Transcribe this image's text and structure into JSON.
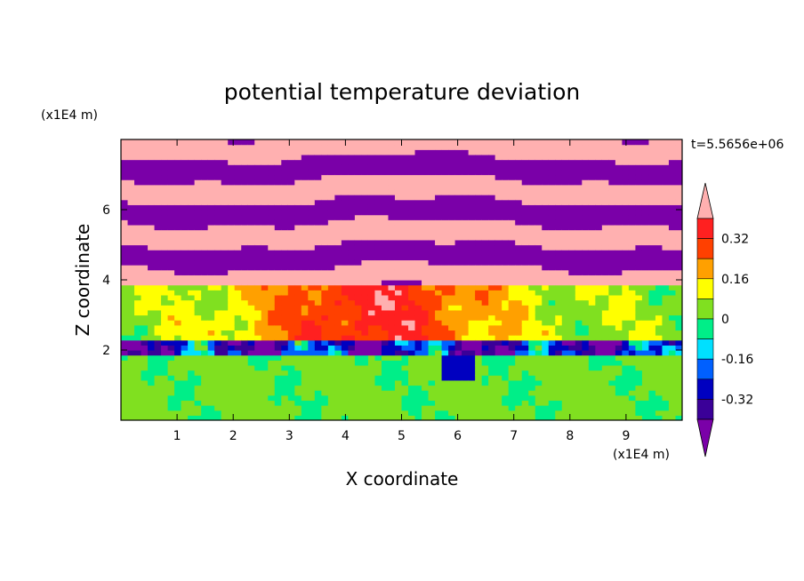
{
  "chart_data": {
    "type": "heatmap",
    "title": "potential temperature deviation",
    "xlabel": "X coordinate",
    "ylabel": "Z coordinate",
    "x_unit": "(x1E4 m)",
    "y_unit": "(x1E4 m)",
    "time_label": "t=5.5656e+06",
    "xlim": [
      0,
      10
    ],
    "ylim": [
      0,
      8
    ],
    "x_ticks": [
      1,
      2,
      3,
      4,
      5,
      6,
      7,
      8,
      9
    ],
    "y_ticks": [
      2,
      4,
      6
    ],
    "colorbar": {
      "levels": [
        -0.4,
        -0.32,
        -0.24,
        -0.16,
        -0.08,
        0,
        0.08,
        0.16,
        0.24,
        0.32,
        0.4
      ],
      "tick_labels": [
        "0.32",
        "0.16",
        "0",
        "-0.16",
        "-0.32"
      ],
      "tick_values": [
        0.32,
        0.16,
        0,
        -0.16,
        -0.32
      ],
      "colors": [
        "#7a00a8",
        "#3a0098",
        "#0000c0",
        "#0060ff",
        "#00e0ff",
        "#00ee88",
        "#80e020",
        "#ffff00",
        "#ffa000",
        "#ff4000",
        "#ff2020",
        "#ffb0b0"
      ],
      "extend": "both"
    },
    "description_bands": [
      {
        "z_range": [
          0,
          1.9
        ],
        "approx_value": 0.02
      },
      {
        "z_range": [
          1.9,
          2.3
        ],
        "approx_value": -0.3
      },
      {
        "z_range": [
          2.3,
          3.8
        ],
        "approx_value": 0.25
      },
      {
        "z_range": [
          3.8,
          8
        ],
        "approx_value": "alternating +0.4 / -0.4"
      }
    ],
    "grid": false,
    "legend": "colorbar-right"
  }
}
